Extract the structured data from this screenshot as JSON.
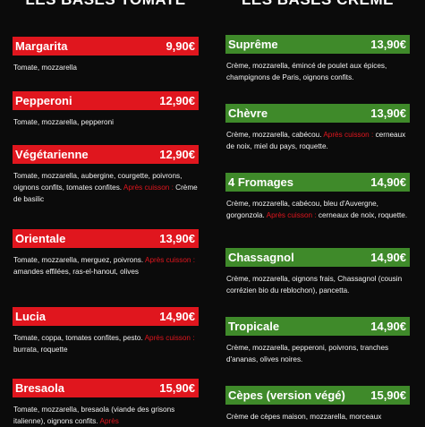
{
  "left": {
    "title": "LES BASES TOMATE",
    "items": [
      {
        "name": "Margarita",
        "price": "9,90€",
        "desc": "Tomate, mozzarella"
      },
      {
        "name": "Pepperoni",
        "price": "12,90€",
        "desc": "Tomate, mozzarella, pepperoni"
      },
      {
        "name": "Végétarienne",
        "price": "12,90€",
        "desc": "Tomate, mozzarella, aubergine, courgette, poivrons, oignons confits, tomates confites.",
        "accent": "Après cuisson :",
        "after": " Crème de basilic"
      },
      {
        "name": "Orientale",
        "price": "13,90€",
        "desc": "Tomate, mozzarella, merguez, poivrons.",
        "accent": "Après cuisson :",
        "after": " amandes effilées, ras-el-hanout, olives"
      },
      {
        "name": "Lucia",
        "price": "14,90€",
        "desc": "Tomate, coppa, tomates confites, pesto.",
        "accent": "Après cuisson :",
        "after": " burrata, roquette"
      },
      {
        "name": "Bresaola",
        "price": "15,90€",
        "desc": "Tomate, mozzarella, bresaola (viande des grisons italienne), oignons confits.",
        "accent": "Après",
        "after": ""
      }
    ]
  },
  "right": {
    "title": "LES BASES CRÈME",
    "items": [
      {
        "name": "Suprême",
        "price": "13,90€",
        "desc": "Crème, mozzarella, émincé de poulet aux épices, champignons de Paris, oignons confits."
      },
      {
        "name": "Chèvre",
        "price": "13,90€",
        "desc": "Crème, mozzarella, cabécou.",
        "accent": "Après cuisson :",
        "after": " cerneaux de noix, miel du pays, roquette."
      },
      {
        "name": "4 Fromages",
        "price": "14,90€",
        "desc": "Crème, mozzarella, cabécou, bleu d'Auvergne, gorgonzola.",
        "accent": "Après cuisson :",
        "after": " cerneaux de noix, roquette."
      },
      {
        "name": "Chassagnol",
        "price": "14,90€",
        "desc": "Crème, mozzarella, oignons frais, Chassagnol (cousin corrézien bio du reblochon), pancetta."
      },
      {
        "name": "Tropicale",
        "price": "14,90€",
        "desc": "Crème, mozzarella, pepperoni, poivrons, tranches d'ananas, olives noires."
      },
      {
        "name": "Cèpes (version végé)",
        "price": "15,90€",
        "desc": "Crème de cèpes maison, mozzarella, morceaux"
      }
    ]
  }
}
